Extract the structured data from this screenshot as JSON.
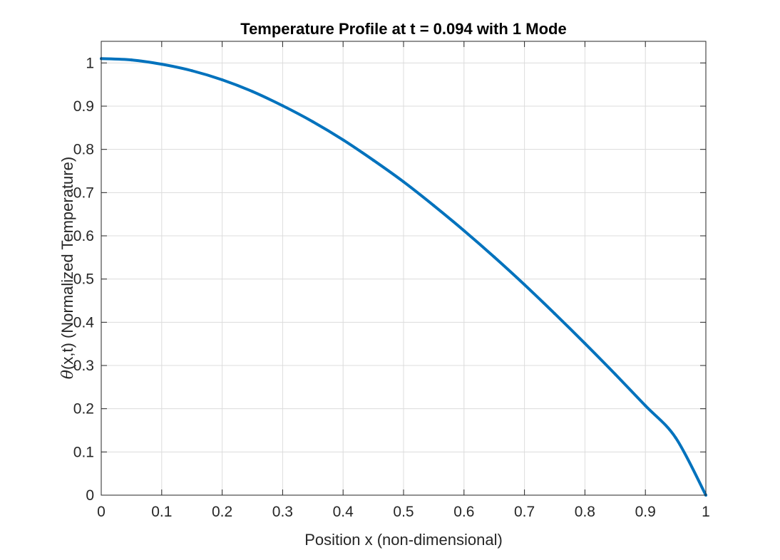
{
  "chart_data": {
    "type": "line",
    "title": "Temperature Profile at t = 0.094 with 1 Mode",
    "xlabel": "Position x (non-dimensional)",
    "ylabel_symbol": "θ",
    "ylabel": "(x,t) (Normalized Temperature)",
    "xlim": [
      0,
      1
    ],
    "ylim": [
      0,
      1.05
    ],
    "xticks": [
      0,
      0.1,
      0.2,
      0.3,
      0.4,
      0.5,
      0.6,
      0.7,
      0.8,
      0.9,
      1
    ],
    "xtick_labels": [
      "0",
      "0.1",
      "0.2",
      "0.3",
      "0.4",
      "0.5",
      "0.6",
      "0.7",
      "0.8",
      "0.9",
      "1"
    ],
    "yticks": [
      0,
      0.1,
      0.2,
      0.3,
      0.4,
      0.5,
      0.6,
      0.7,
      0.8,
      0.9,
      1
    ],
    "ytick_labels": [
      "0",
      "0.1",
      "0.2",
      "0.3",
      "0.4",
      "0.5",
      "0.6",
      "0.7",
      "0.8",
      "0.9",
      "1"
    ],
    "grid": true,
    "series": [
      {
        "color": "#0072BD",
        "x": [
          0,
          0.05,
          0.1,
          0.15,
          0.2,
          0.25,
          0.3,
          0.35,
          0.4,
          0.45,
          0.5,
          0.55,
          0.6,
          0.65,
          0.7,
          0.75,
          0.8,
          0.85,
          0.9,
          0.95,
          1
        ],
        "y": [
          1.01,
          1.007,
          0.997,
          0.982,
          0.961,
          0.934,
          0.901,
          0.864,
          0.822,
          0.775,
          0.725,
          0.67,
          0.612,
          0.551,
          0.487,
          0.42,
          0.351,
          0.28,
          0.207,
          0.133,
          0.0
        ]
      }
    ]
  }
}
